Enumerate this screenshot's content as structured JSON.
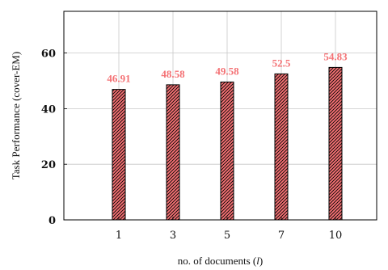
{
  "chart_data": {
    "type": "bar",
    "categories": [
      "1",
      "3",
      "5",
      "7",
      "10"
    ],
    "values": [
      46.91,
      48.58,
      49.58,
      52.5,
      54.83
    ],
    "data_labels": [
      "46.91",
      "48.58",
      "49.58",
      "52.5",
      "54.83"
    ],
    "xlabel_text": "no. of documents (",
    "xlabel_var": "l",
    "xlabel_end": ")",
    "ylabel": "Task Performance (cover-EM)",
    "ylim": [
      0,
      75
    ],
    "yticks": [
      "0",
      "20",
      "40",
      "60"
    ],
    "ytick_values": [
      0,
      20,
      40,
      60
    ],
    "grid": true,
    "bar_fill": "#f47174",
    "bar_hatch": "#000000",
    "label_color": "#f47174"
  }
}
